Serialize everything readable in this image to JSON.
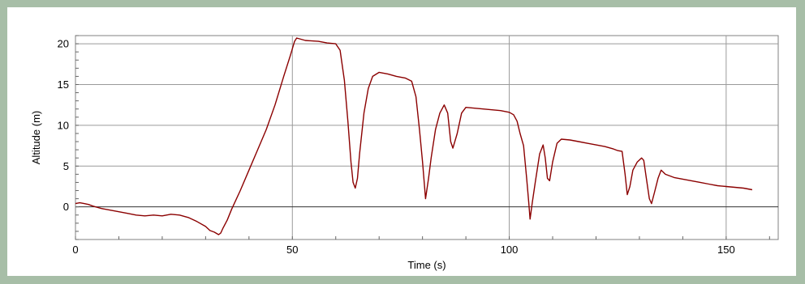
{
  "chart_data": {
    "type": "line",
    "title": "",
    "xlabel": "Time (s)",
    "ylabel": "Altitude (m)",
    "xlim": [
      0,
      162
    ],
    "ylim": [
      -4,
      21
    ],
    "x_ticks": [
      0,
      50,
      100,
      150
    ],
    "y_ticks": [
      0,
      5,
      10,
      15,
      20
    ],
    "grid": true,
    "zero_line": true,
    "line_color": "#8b0000",
    "series": [
      {
        "points": [
          [
            0,
            0.4
          ],
          [
            1,
            0.5
          ],
          [
            2,
            0.4
          ],
          [
            3,
            0.3
          ],
          [
            4,
            0.1
          ],
          [
            6,
            -0.2
          ],
          [
            8,
            -0.4
          ],
          [
            10,
            -0.6
          ],
          [
            12,
            -0.8
          ],
          [
            14,
            -1.0
          ],
          [
            16,
            -1.1
          ],
          [
            18,
            -1.0
          ],
          [
            20,
            -1.1
          ],
          [
            22,
            -0.9
          ],
          [
            24,
            -1.0
          ],
          [
            26,
            -1.3
          ],
          [
            28,
            -1.8
          ],
          [
            30,
            -2.4
          ],
          [
            31,
            -2.9
          ],
          [
            32,
            -3.1
          ],
          [
            33,
            -3.4
          ],
          [
            33.5,
            -3.2
          ],
          [
            34,
            -2.6
          ],
          [
            35,
            -1.6
          ],
          [
            36,
            -0.3
          ],
          [
            38,
            2.0
          ],
          [
            40,
            4.5
          ],
          [
            42,
            7.0
          ],
          [
            44,
            9.5
          ],
          [
            46,
            12.5
          ],
          [
            48,
            16.0
          ],
          [
            49.5,
            18.5
          ],
          [
            50.5,
            20.3
          ],
          [
            51,
            20.7
          ],
          [
            53,
            20.4
          ],
          [
            56,
            20.3
          ],
          [
            58,
            20.1
          ],
          [
            60,
            20.0
          ],
          [
            61,
            19.2
          ],
          [
            62,
            15.5
          ],
          [
            62.8,
            10.5
          ],
          [
            63.5,
            5.5
          ],
          [
            64,
            3.0
          ],
          [
            64.5,
            2.3
          ],
          [
            65,
            3.5
          ],
          [
            65.5,
            6.5
          ],
          [
            66.5,
            11.5
          ],
          [
            67.5,
            14.5
          ],
          [
            68.5,
            16.0
          ],
          [
            70,
            16.5
          ],
          [
            72,
            16.3
          ],
          [
            74,
            16.0
          ],
          [
            76,
            15.8
          ],
          [
            77.5,
            15.4
          ],
          [
            78.5,
            13.5
          ],
          [
            79.3,
            9.5
          ],
          [
            80,
            5.5
          ],
          [
            80.7,
            1.0
          ],
          [
            81.4,
            3.5
          ],
          [
            82,
            6.0
          ],
          [
            83,
            9.5
          ],
          [
            84,
            11.5
          ],
          [
            85,
            12.5
          ],
          [
            85.8,
            11.5
          ],
          [
            86.5,
            8.0
          ],
          [
            87,
            7.2
          ],
          [
            88,
            9.0
          ],
          [
            89,
            11.5
          ],
          [
            90,
            12.2
          ],
          [
            92,
            12.1
          ],
          [
            94,
            12.0
          ],
          [
            96,
            11.9
          ],
          [
            98,
            11.8
          ],
          [
            100,
            11.6
          ],
          [
            101,
            11.3
          ],
          [
            101.8,
            10.5
          ],
          [
            102.5,
            9.0
          ],
          [
            103.3,
            7.5
          ],
          [
            104,
            3.5
          ],
          [
            104.5,
            0.5
          ],
          [
            104.8,
            -1.5
          ],
          [
            105.3,
            0.5
          ],
          [
            106,
            3.0
          ],
          [
            107,
            6.5
          ],
          [
            107.8,
            7.6
          ],
          [
            108.3,
            6.0
          ],
          [
            108.8,
            3.5
          ],
          [
            109.3,
            3.2
          ],
          [
            110,
            5.5
          ],
          [
            111,
            7.8
          ],
          [
            112,
            8.3
          ],
          [
            114,
            8.2
          ],
          [
            116,
            8.0
          ],
          [
            118,
            7.8
          ],
          [
            120,
            7.6
          ],
          [
            122,
            7.4
          ],
          [
            124,
            7.1
          ],
          [
            125,
            6.9
          ],
          [
            126,
            6.8
          ],
          [
            126.7,
            4.0
          ],
          [
            127.2,
            1.5
          ],
          [
            127.8,
            2.5
          ],
          [
            128.5,
            4.5
          ],
          [
            129.5,
            5.5
          ],
          [
            130.5,
            6.0
          ],
          [
            131,
            5.7
          ],
          [
            131.6,
            3.5
          ],
          [
            132.3,
            1.0
          ],
          [
            132.8,
            0.4
          ],
          [
            133.5,
            1.8
          ],
          [
            134.3,
            3.5
          ],
          [
            135,
            4.5
          ],
          [
            136,
            4.0
          ],
          [
            138,
            3.6
          ],
          [
            140,
            3.4
          ],
          [
            142,
            3.2
          ],
          [
            144,
            3.0
          ],
          [
            146,
            2.8
          ],
          [
            148,
            2.6
          ],
          [
            150,
            2.5
          ],
          [
            152,
            2.4
          ],
          [
            154,
            2.3
          ],
          [
            155,
            2.2
          ],
          [
            156,
            2.1
          ]
        ]
      }
    ]
  }
}
